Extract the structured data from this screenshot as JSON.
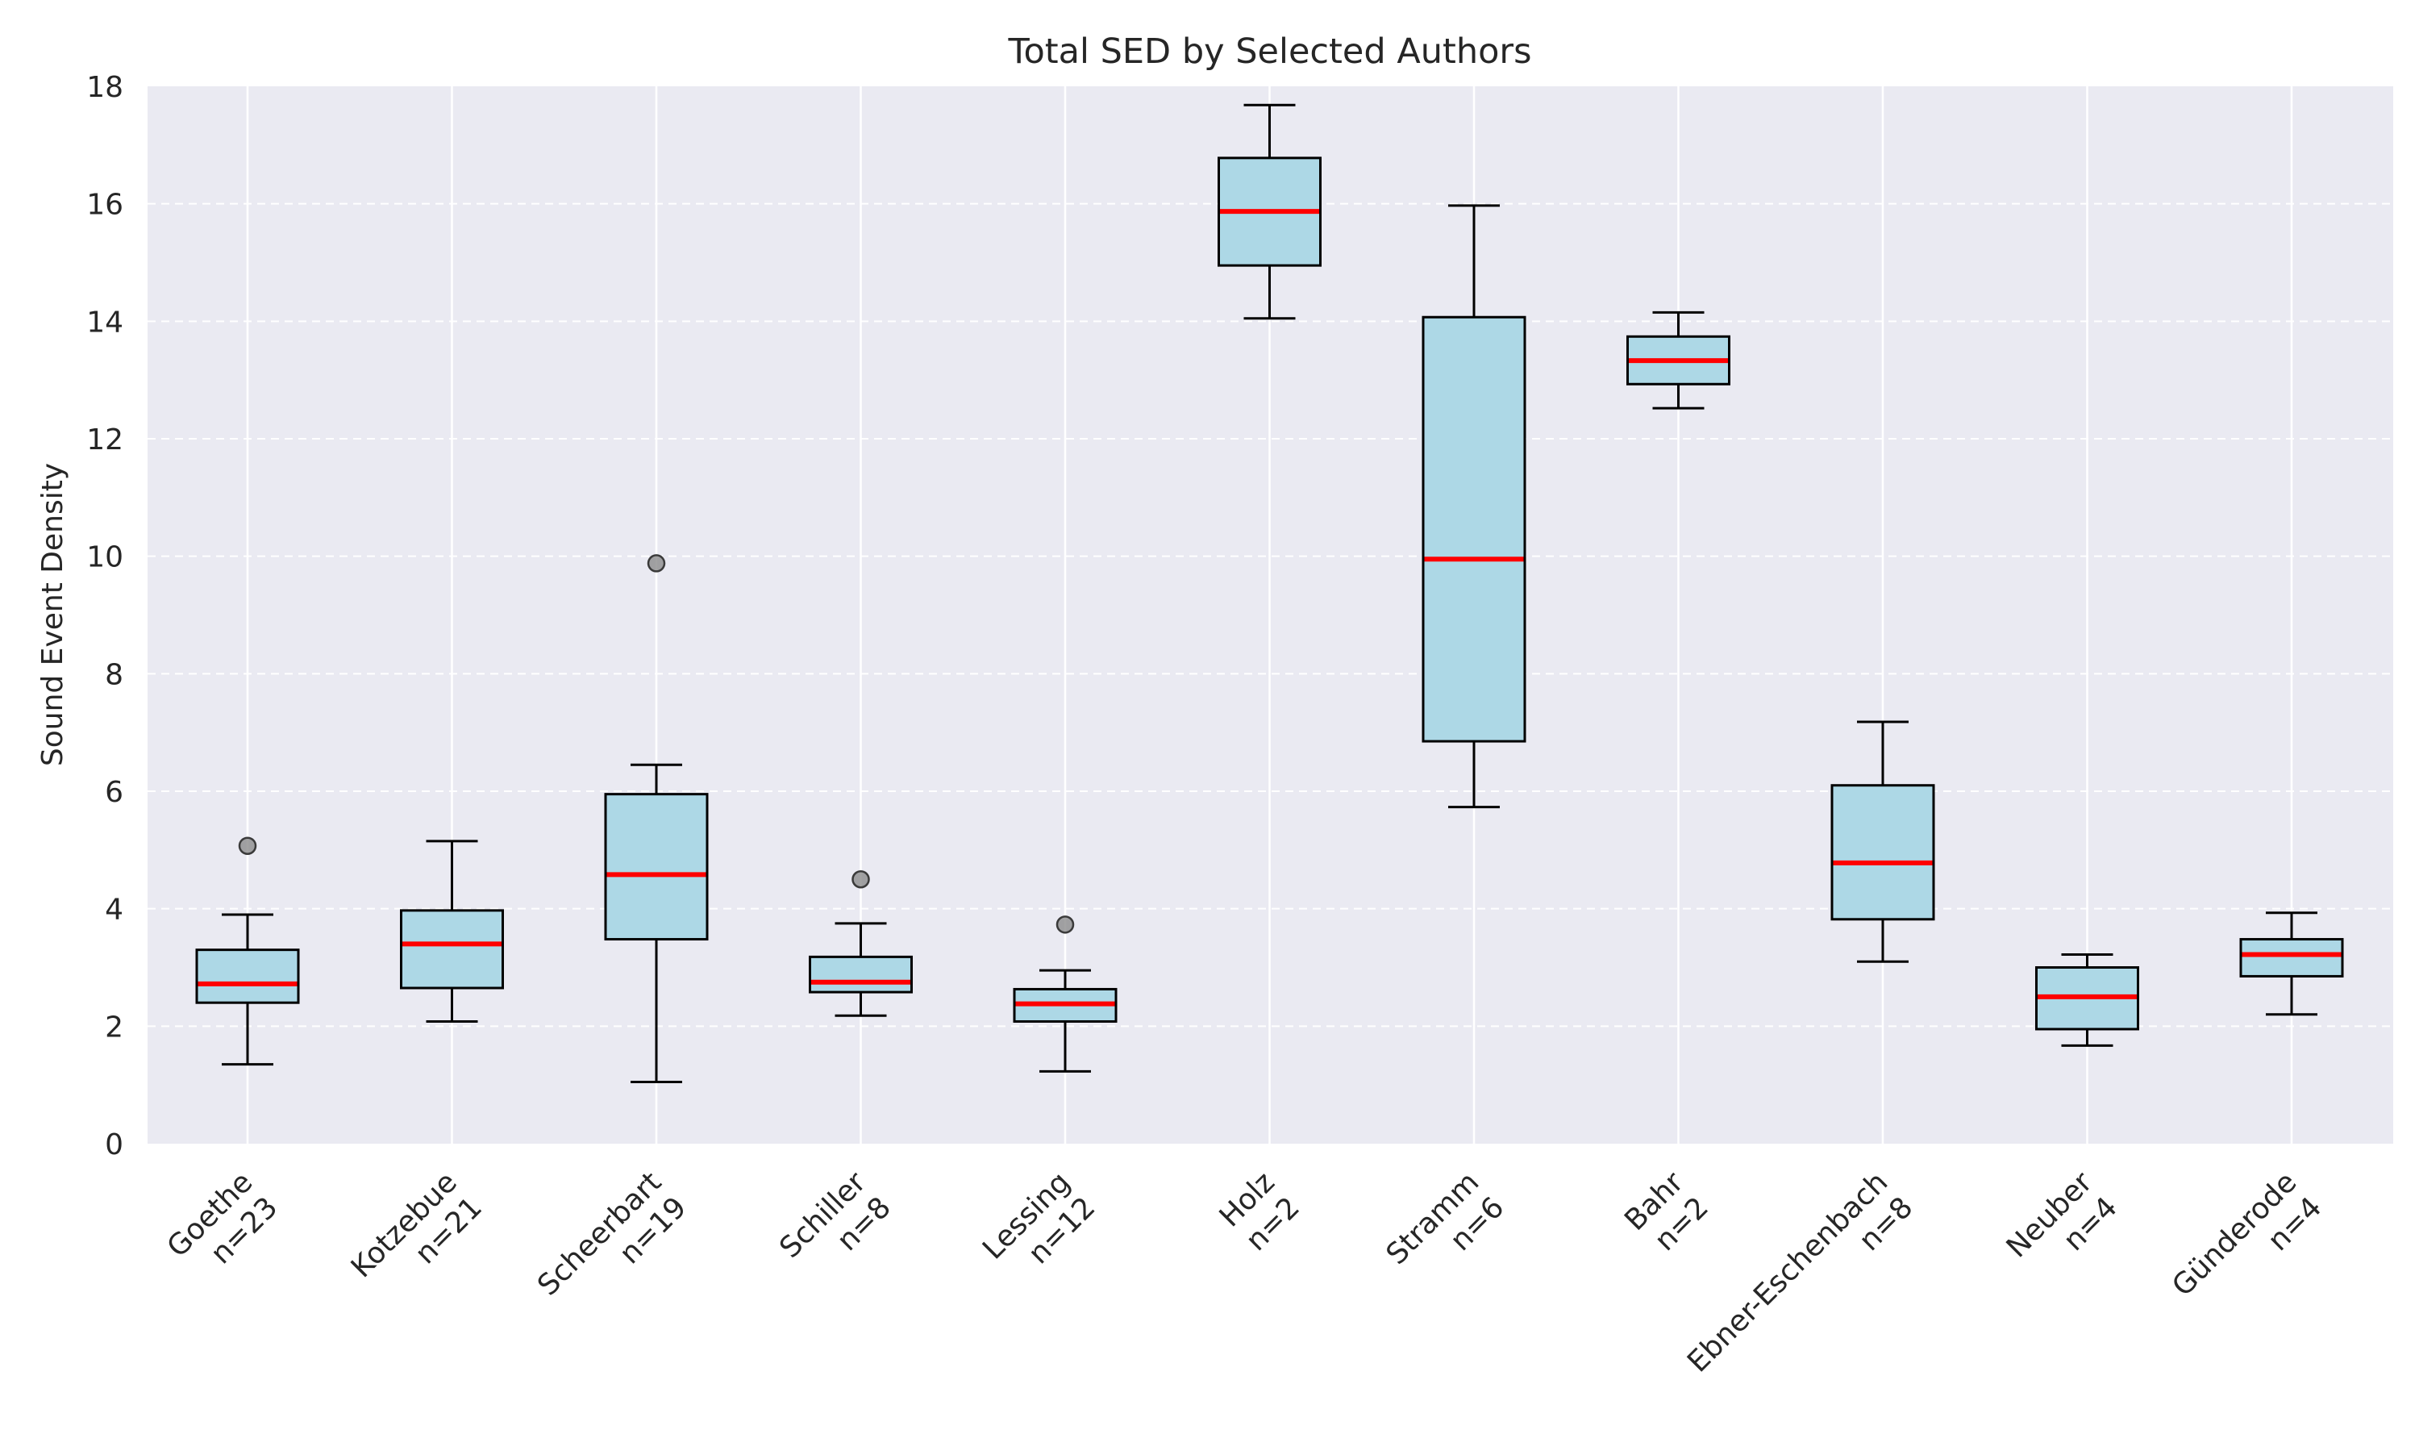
{
  "chart_data": {
    "type": "box",
    "title": "Total SED by Selected Authors",
    "xlabel": "",
    "ylabel": "Sound Event Density",
    "ylim": [
      0,
      18
    ],
    "yticks": [
      0,
      2,
      4,
      6,
      8,
      10,
      12,
      14,
      16,
      18
    ],
    "grid": true,
    "colors": {
      "plot_background": "#eaeaf2",
      "box_fill": "#add8e6",
      "median": "#ff0000",
      "outlier": "#8c8c8c",
      "grid": "#ffffff",
      "box_edge": "#000000"
    },
    "categories": [
      {
        "author": "Goethe",
        "n": "n=23",
        "whisker_low": 1.35,
        "q1": 2.4,
        "median": 2.72,
        "q3": 3.3,
        "whisker_high": 3.9,
        "outliers": [
          5.07
        ]
      },
      {
        "author": "Kotzebue",
        "n": "n=21",
        "whisker_low": 2.08,
        "q1": 2.65,
        "median": 3.4,
        "q3": 3.97,
        "whisker_high": 5.15,
        "outliers": []
      },
      {
        "author": "Scheerbart",
        "n": "n=19",
        "whisker_low": 1.05,
        "q1": 3.48,
        "median": 4.58,
        "q3": 5.95,
        "whisker_high": 6.45,
        "outliers": [
          9.88
        ]
      },
      {
        "author": "Schiller",
        "n": "n=8",
        "whisker_low": 2.18,
        "q1": 2.58,
        "median": 2.75,
        "q3": 3.18,
        "whisker_high": 3.75,
        "outliers": [
          4.5
        ]
      },
      {
        "author": "Lessing",
        "n": "n=12",
        "whisker_low": 1.23,
        "q1": 2.08,
        "median": 2.38,
        "q3": 2.63,
        "whisker_high": 2.95,
        "outliers": [
          3.73
        ]
      },
      {
        "author": "Holz",
        "n": "n=2",
        "whisker_low": 14.05,
        "q1": 14.95,
        "median": 15.87,
        "q3": 16.78,
        "whisker_high": 17.68,
        "outliers": []
      },
      {
        "author": "Stramm",
        "n": "n=6",
        "whisker_low": 5.73,
        "q1": 6.85,
        "median": 9.95,
        "q3": 14.07,
        "whisker_high": 15.97,
        "outliers": []
      },
      {
        "author": "Bahr",
        "n": "n=2",
        "whisker_low": 12.52,
        "q1": 12.93,
        "median": 13.33,
        "q3": 13.74,
        "whisker_high": 14.15,
        "outliers": []
      },
      {
        "author": "Ebner-Eschenbach",
        "n": "n=8",
        "whisker_low": 3.1,
        "q1": 3.82,
        "median": 4.78,
        "q3": 6.1,
        "whisker_high": 7.18,
        "outliers": []
      },
      {
        "author": "Neuber",
        "n": "n=4",
        "whisker_low": 1.67,
        "q1": 1.95,
        "median": 2.5,
        "q3": 3.0,
        "whisker_high": 3.22,
        "outliers": []
      },
      {
        "author": "Günderode",
        "n": "n=4",
        "whisker_low": 2.2,
        "q1": 2.85,
        "median": 3.22,
        "q3": 3.48,
        "whisker_high": 3.93,
        "outliers": []
      }
    ]
  }
}
